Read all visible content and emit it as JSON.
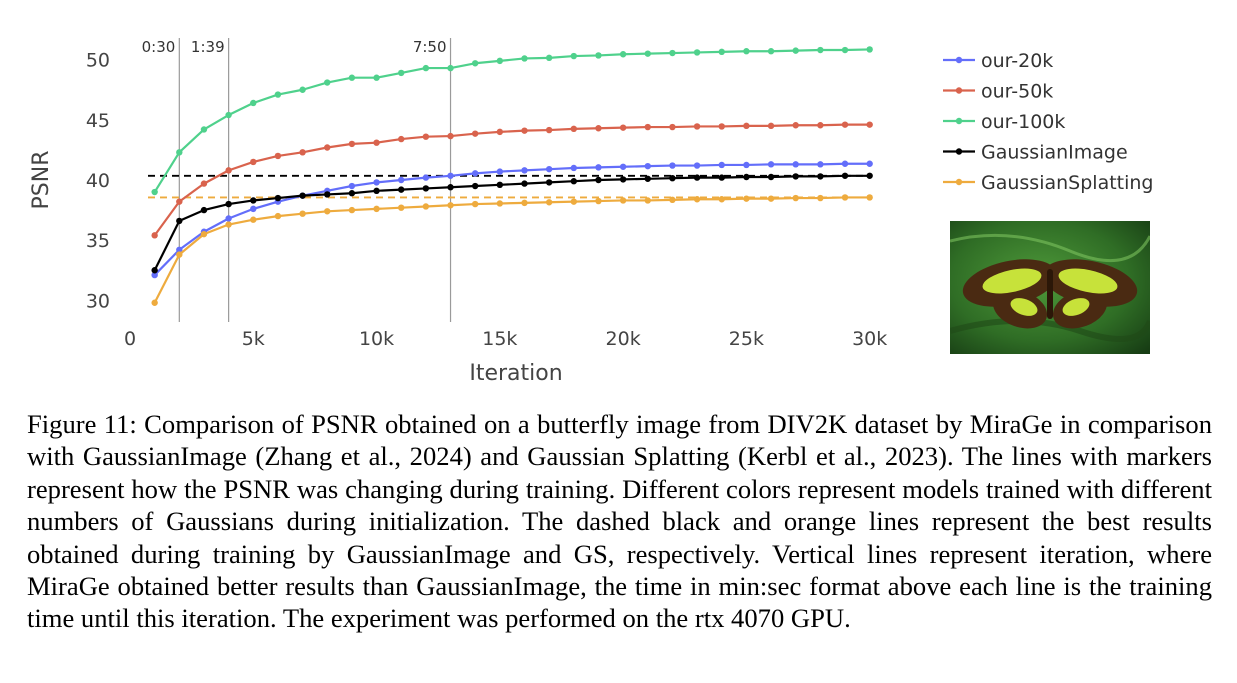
{
  "chart_data": {
    "type": "line",
    "xlabel": "Iteration",
    "ylabel": "PSNR",
    "xlim": [
      0,
      30500
    ],
    "ylim": [
      28.2,
      51.8
    ],
    "x_ticks": [
      0,
      5000,
      10000,
      15000,
      20000,
      25000,
      30000
    ],
    "x_tick_labels": [
      "0",
      "5k",
      "10k",
      "15k",
      "20k",
      "25k",
      "30k"
    ],
    "y_ticks": [
      30,
      35,
      40,
      45,
      50
    ],
    "y_tick_labels": [
      "30",
      "35",
      "40",
      "45",
      "50"
    ],
    "x": [
      1000,
      2000,
      3000,
      4000,
      5000,
      6000,
      7000,
      8000,
      9000,
      10000,
      11000,
      12000,
      13000,
      14000,
      15000,
      16000,
      17000,
      18000,
      19000,
      20000,
      21000,
      22000,
      23000,
      24000,
      25000,
      26000,
      27000,
      28000,
      29000,
      30000
    ],
    "series": [
      {
        "name": "our-20k",
        "color": "#636efa",
        "values": [
          32.1,
          34.2,
          35.7,
          36.8,
          37.6,
          38.2,
          38.7,
          39.1,
          39.5,
          39.8,
          40.0,
          40.2,
          40.35,
          40.55,
          40.7,
          40.8,
          40.9,
          41.0,
          41.05,
          41.1,
          41.15,
          41.2,
          41.2,
          41.25,
          41.25,
          41.3,
          41.3,
          41.3,
          41.35,
          41.35
        ]
      },
      {
        "name": "our-50k",
        "color": "#d9634d",
        "values": [
          35.4,
          38.2,
          39.7,
          40.8,
          41.5,
          42.0,
          42.3,
          42.7,
          43.0,
          43.1,
          43.4,
          43.6,
          43.65,
          43.85,
          44.0,
          44.1,
          44.15,
          44.25,
          44.3,
          44.35,
          44.4,
          44.4,
          44.45,
          44.45,
          44.5,
          44.5,
          44.55,
          44.55,
          44.6,
          44.6
        ]
      },
      {
        "name": "our-100k",
        "color": "#4fd18c",
        "values": [
          39.0,
          42.3,
          44.2,
          45.4,
          46.4,
          47.1,
          47.5,
          48.1,
          48.5,
          48.5,
          48.9,
          49.3,
          49.3,
          49.7,
          49.9,
          50.1,
          50.15,
          50.3,
          50.35,
          50.45,
          50.5,
          50.55,
          50.6,
          50.65,
          50.7,
          50.7,
          50.75,
          50.8,
          50.8,
          50.85
        ]
      },
      {
        "name": "GaussianImage",
        "color": "#000000",
        "values": [
          32.5,
          36.6,
          37.5,
          38.0,
          38.3,
          38.5,
          38.7,
          38.8,
          38.9,
          39.1,
          39.2,
          39.3,
          39.4,
          39.5,
          39.6,
          39.7,
          39.8,
          39.9,
          40.0,
          40.05,
          40.1,
          40.15,
          40.2,
          40.2,
          40.25,
          40.25,
          40.3,
          40.3,
          40.35,
          40.35
        ]
      },
      {
        "name": "GaussianSplatting",
        "color": "#eeab3e",
        "values": [
          29.8,
          33.8,
          35.5,
          36.3,
          36.7,
          37.0,
          37.2,
          37.4,
          37.5,
          37.6,
          37.7,
          37.8,
          37.9,
          38.0,
          38.05,
          38.1,
          38.15,
          38.2,
          38.25,
          38.3,
          38.3,
          38.35,
          38.4,
          38.4,
          38.45,
          38.45,
          38.5,
          38.5,
          38.55,
          38.55
        ]
      }
    ],
    "best_lines": [
      {
        "name": "GaussianImage best",
        "value": 40.35,
        "color": "#000000"
      },
      {
        "name": "GS best",
        "value": 38.55,
        "color": "#eeab3e"
      }
    ],
    "vertical_lines": [
      {
        "iteration": 2000,
        "label": "0:30"
      },
      {
        "iteration": 4000,
        "label": "1:39"
      },
      {
        "iteration": 13000,
        "label": "7:50"
      }
    ],
    "legend_position": "top-right"
  },
  "figure": {
    "image_alt": "butterfly image",
    "caption": "Figure 11: Comparison of PSNR obtained on a butterfly image from DIV2K dataset by MiraGe in comparison with GaussianImage (Zhang et al., 2024) and Gaussian Splatting (Kerbl et al., 2023). The lines with markers represent how the PSNR was changing during training. Different colors represent models trained with different numbers of Gaussians during initialization. The dashed black and orange lines represent the best results obtained during training by GaussianImage and GS, respectively. Vertical lines represent iteration, where MiraGe obtained better results than GaussianImage, the time in min:sec format above each line is the training time until this iteration. The experiment was performed on the rtx 4070 GPU."
  }
}
